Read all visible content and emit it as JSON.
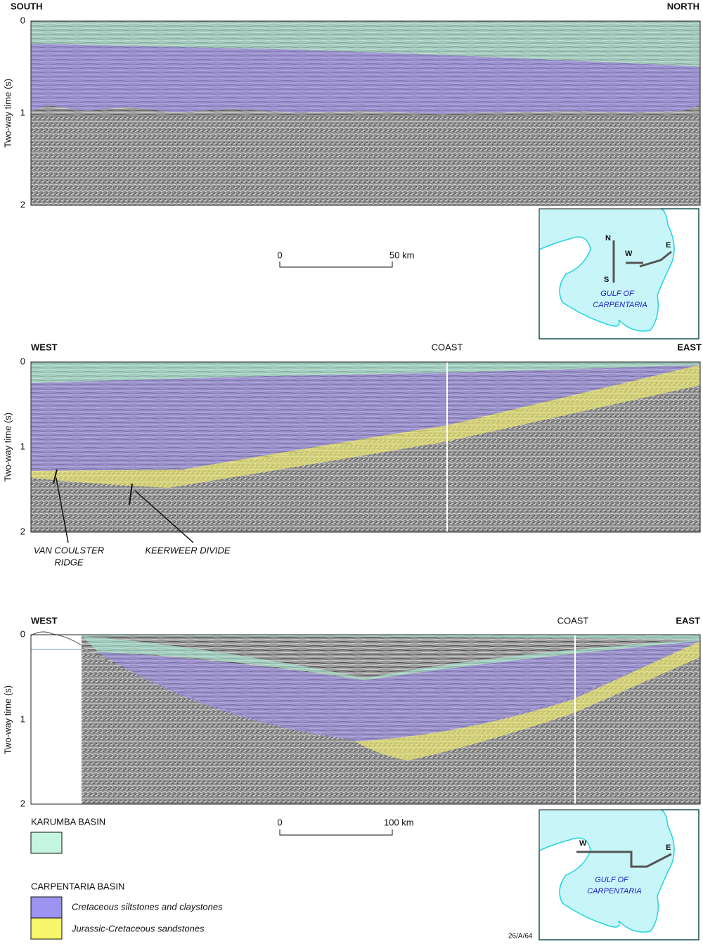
{
  "panels": [
    {
      "left_label": "SOUTH",
      "right_label": "NORTH",
      "y_axis_title": "Two-way time (s)",
      "y_ticks": [
        "0",
        "1",
        "2"
      ]
    },
    {
      "left_label": "WEST",
      "center_label": "COAST",
      "right_label": "EAST",
      "y_axis_title": "Two-way time (s)",
      "y_ticks": [
        "0",
        "1",
        "2"
      ],
      "annotations": [
        [
          "VAN COULSTER",
          "RIDGE"
        ],
        [
          "KEERWEER DIVIDE"
        ]
      ]
    },
    {
      "left_label": "WEST",
      "center_label": "COAST",
      "right_label": "EAST",
      "y_axis_title": "Two-way time (s)",
      "y_ticks": [
        "0",
        "1",
        "2"
      ]
    }
  ],
  "scale_bars": [
    {
      "start": "0",
      "end": "50 km"
    },
    {
      "start": "0",
      "end": "100 km"
    }
  ],
  "maps": [
    {
      "line_labels": [
        "N",
        "S",
        "W",
        "E"
      ],
      "water_label": [
        "GULF OF",
        "CARPENTARIA"
      ]
    },
    {
      "line_labels": [
        "W",
        "E"
      ],
      "water_label": [
        "GULF OF",
        "CARPENTARIA"
      ]
    }
  ],
  "legend": {
    "groups": [
      {
        "title": "KARUMBA BASIN",
        "items": []
      },
      {
        "title": "CARPENTARIA BASIN",
        "items": [
          "Cretaceous siltstones and claystones",
          "Jurassic-Cretaceous sandstones"
        ]
      }
    ]
  },
  "figure_id": "26/A/64"
}
